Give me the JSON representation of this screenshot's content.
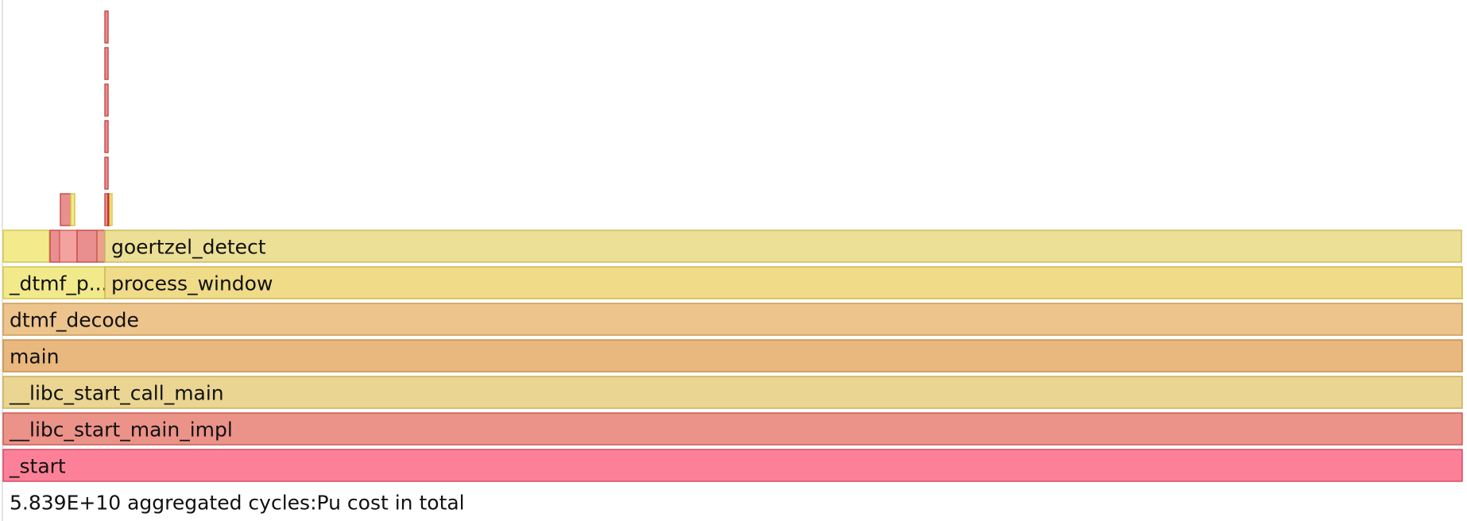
{
  "summary": "5.839E+10 aggregated cycles:Pu cost in total",
  "frames": {
    "start": {
      "label": "_start",
      "fill": "#fc8198",
      "stroke": "#d94a66"
    },
    "libc_start_main_impl": {
      "label": "__libc_start_main_impl",
      "fill": "#eb9289",
      "stroke": "#cc5d55"
    },
    "libc_start_call_main": {
      "label": "__libc_start_call_main",
      "fill": "#ead592",
      "stroke": "#cbb15b"
    },
    "main": {
      "label": "main",
      "fill": "#e9b87e",
      "stroke": "#c98f48"
    },
    "dtmf_decode": {
      "label": "dtmf_decode",
      "fill": "#ecc48c",
      "stroke": "#cc9b58"
    },
    "dtmf_p": {
      "label": "_dtmf_p...",
      "fill": "#f1e98a",
      "stroke": "#d1c652"
    },
    "process_window": {
      "label": "process_window",
      "fill": "#efdb88",
      "stroke": "#cfb752"
    },
    "goertzel_detect": {
      "label": "goertzel_detect",
      "fill": "#ecdf96",
      "stroke": "#cdbc5e"
    }
  },
  "colors": {
    "hot_red": "#e98f8f",
    "hot_red_stroke": "#c94f4f",
    "hot_pink": "#f4a2a0",
    "hot_pink_stroke": "#d66565",
    "yellow": "#f3ea8c",
    "yellow_stroke": "#d4c552",
    "divider": "#dddddd"
  }
}
